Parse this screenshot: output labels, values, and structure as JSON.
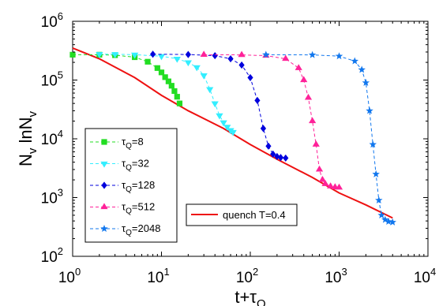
{
  "chart_data": {
    "type": "line",
    "xscale": "log",
    "yscale": "log",
    "xlim": [
      1,
      10000
    ],
    "ylim": [
      100,
      1000000
    ],
    "grid": false,
    "x_ticks": [
      {
        "base": "10",
        "exp": "0",
        "value": 1
      },
      {
        "base": "10",
        "exp": "1",
        "value": 10
      },
      {
        "base": "10",
        "exp": "2",
        "value": 100
      },
      {
        "base": "10",
        "exp": "3",
        "value": 1000
      },
      {
        "base": "10",
        "exp": "4",
        "value": 10000
      }
    ],
    "y_ticks": [
      {
        "base": "10",
        "exp": "2",
        "value": 100
      },
      {
        "base": "10",
        "exp": "3",
        "value": 1000
      },
      {
        "base": "10",
        "exp": "4",
        "value": 10000
      },
      {
        "base": "10",
        "exp": "5",
        "value": 100000
      },
      {
        "base": "10",
        "exp": "6",
        "value": 1000000
      }
    ],
    "xlabel": {
      "main": "t+τ",
      "sub": "Q"
    },
    "ylabel": {
      "a": "N",
      "a_sub": "v",
      "b": " lnN",
      "b_sub": "v"
    },
    "series": [
      {
        "legend_sym": "τ",
        "legend_sub": "Q",
        "legend_val": "=8",
        "color": "#22dd22",
        "marker": "square",
        "x": [
          1,
          2,
          3,
          5,
          7,
          9,
          10,
          11,
          12,
          13,
          14,
          15,
          16
        ],
        "y": [
          270000,
          270000,
          265000,
          245000,
          205000,
          160000,
          135000,
          112000,
          95000,
          80000,
          65000,
          52000,
          40000
        ]
      },
      {
        "legend_sym": "τ",
        "legend_sub": "Q",
        "legend_val": "=32",
        "color": "#33eeff",
        "marker": "triangle-down",
        "x": [
          2,
          3,
          5,
          10,
          15,
          20,
          25,
          30,
          35,
          40,
          45,
          50,
          55,
          60,
          64
        ],
        "y": [
          275000,
          275000,
          270000,
          255000,
          230000,
          200000,
          165000,
          120000,
          70000,
          40000,
          25000,
          19000,
          16000,
          14000,
          13000
        ]
      },
      {
        "legend_sym": "τ",
        "legend_sub": "Q",
        "legend_val": "=128",
        "color": "#0000dd",
        "marker": "diamond",
        "x": [
          8,
          20,
          40,
          60,
          80,
          100,
          120,
          140,
          160,
          180,
          200,
          220,
          250
        ],
        "y": [
          275000,
          272000,
          260000,
          230000,
          180000,
          110000,
          45000,
          15000,
          7500,
          5500,
          5000,
          4800,
          4700
        ]
      },
      {
        "legend_sym": "τ",
        "legend_sub": "Q",
        "legend_val": "=512",
        "color": "#ff2299",
        "marker": "triangle-up",
        "x": [
          30,
          80,
          150,
          250,
          350,
          400,
          450,
          500,
          550,
          600,
          650,
          700,
          800,
          900,
          1000
        ],
        "y": [
          270000,
          268000,
          260000,
          230000,
          160000,
          100000,
          50000,
          20000,
          8000,
          3000,
          2000,
          1700,
          1550,
          1500,
          1480
        ]
      },
      {
        "legend_sym": "τ",
        "legend_sub": "Q",
        "legend_val": "=2048",
        "color": "#1177ee",
        "marker": "star",
        "x": [
          150,
          500,
          1000,
          1500,
          1800,
          2000,
          2200,
          2400,
          2600,
          2800,
          3000,
          3300,
          3600,
          4000
        ],
        "y": [
          270000,
          268000,
          255000,
          210000,
          150000,
          90000,
          30000,
          8000,
          2500,
          900,
          500,
          420,
          390,
          380
        ]
      },
      {
        "legend_sym": "",
        "legend_sub": "",
        "legend_val": "quench T=0.4",
        "color": "#ee1111",
        "marker": "none",
        "x": [
          1,
          2,
          5,
          10,
          20,
          50,
          100,
          200,
          500,
          1000,
          2000,
          4000
        ],
        "y": [
          350000,
          230000,
          110000,
          55000,
          30000,
          15000,
          8000,
          4500,
          2200,
          1200,
          750,
          450
        ]
      }
    ]
  }
}
